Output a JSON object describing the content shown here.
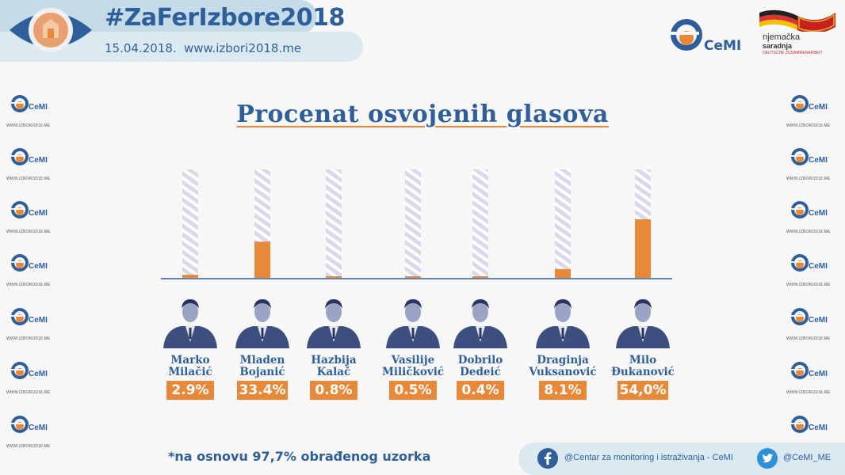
{
  "header": {
    "hashtag": "#ZaFerIzbore2018",
    "date": "15.04.2018.",
    "website": "www.izbori2018.me"
  },
  "logos": {
    "cemi": "CeMI",
    "partner_line1": "njemačka",
    "partner_line2": "saradnja",
    "partner_line3": "DEUTSCHE ZUSAMMENARBEIT"
  },
  "side_stamp": {
    "name": "CeMI",
    "url": "WWW.IZBORI2018.ME"
  },
  "chart_data": {
    "type": "bar",
    "title": "Procenat osvojenih glasova",
    "categories": [
      "Marko Milačić",
      "Mladen Bojanić",
      "Hazbija Kalač",
      "Vasilije Miličković",
      "Dobrilo Dedeić",
      "Draginja Vuksanović",
      "Milo Đukanović"
    ],
    "name_lines": [
      [
        "Marko",
        "Milačić"
      ],
      [
        "Mladen",
        "Bojanić"
      ],
      [
        "Hazbija",
        "Kalač"
      ],
      [
        "Vasilije",
        "Miličković"
      ],
      [
        "Dobrilo",
        "Dedeić"
      ],
      [
        "Draginja",
        "Vuksanović"
      ],
      [
        "Milo",
        "Đukanović"
      ]
    ],
    "values": [
      2.9,
      33.4,
      0.8,
      0.5,
      0.4,
      8.1,
      54.0
    ],
    "value_labels": [
      "2.9%",
      "33.4%",
      "0.8%",
      "0.5%",
      "0.4%",
      "8.1%",
      "54,0%"
    ],
    "ylim": [
      0,
      100
    ],
    "grid": false,
    "colors": {
      "bar": "#e8893a",
      "track": "#d9d9ec",
      "stripe": "#ffffff",
      "axis": "#2f5f9a"
    }
  },
  "footnote": "*na osnovu 97,7% obrađenog uzorka",
  "social": {
    "facebook": "@Centar za monitoring i istraživanja - CeMI",
    "twitter": "@CeMI_ME"
  },
  "colors": {
    "brand_blue": "#2f5f9a",
    "brand_orange": "#e8893a",
    "banner": "#c5dbe8"
  }
}
